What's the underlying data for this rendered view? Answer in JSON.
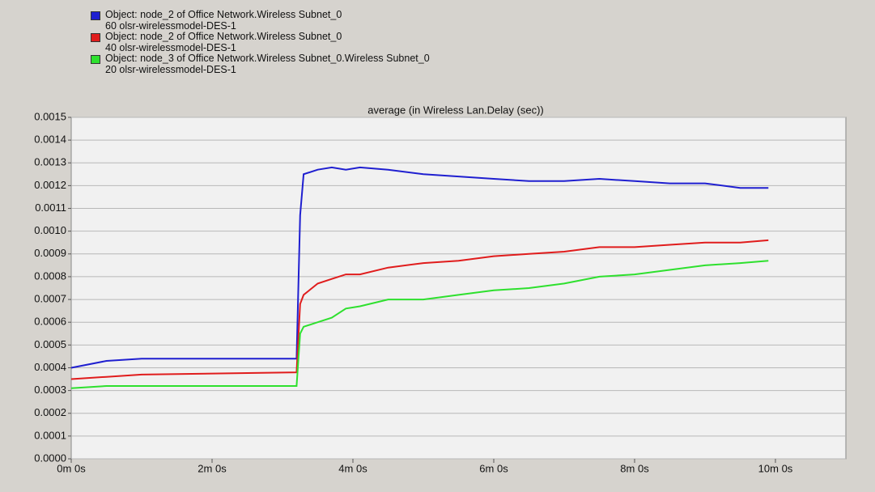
{
  "chart_data": {
    "type": "line",
    "subtitle": "average (in Wireless Lan.Delay (sec))",
    "x": [
      0,
      0.5,
      1,
      3.2,
      3.25,
      3.3,
      3.5,
      3.7,
      3.9,
      4.1,
      4.5,
      5,
      5.5,
      6,
      6.5,
      7,
      7.5,
      8,
      8.5,
      9,
      9.5,
      9.9
    ],
    "series": [
      {
        "name": "Object: node_2 of Office Network.Wireless Subnet_0\n60 olsr-wirelessmodel-DES-1",
        "color": "#1f1fd0",
        "values": [
          0.0004,
          0.00043,
          0.00044,
          0.00044,
          0.00107,
          0.00125,
          0.00127,
          0.00128,
          0.00127,
          0.00128,
          0.00127,
          0.00125,
          0.00124,
          0.00123,
          0.00122,
          0.00122,
          0.00123,
          0.00122,
          0.00121,
          0.00121,
          0.00119,
          0.00119
        ]
      },
      {
        "name": "Object: node_2 of Office Network.Wireless Subnet_0\n40 olsr-wirelessmodel-DES-1",
        "color": "#e01c1c",
        "values": [
          0.00035,
          0.00036,
          0.00037,
          0.00038,
          0.00068,
          0.00072,
          0.00077,
          0.00079,
          0.00081,
          0.00081,
          0.00084,
          0.00086,
          0.00087,
          0.00089,
          0.0009,
          0.00091,
          0.00093,
          0.00093,
          0.00094,
          0.00095,
          0.00095,
          0.00096
        ]
      },
      {
        "name": "Object: node_3 of Office Network.Wireless Subnet_0.Wireless Subnet_0\n20 olsr-wirelessmodel-DES-1",
        "color": "#2ee02e",
        "values": [
          0.00031,
          0.00032,
          0.00032,
          0.00032,
          0.00055,
          0.00058,
          0.0006,
          0.00062,
          0.00066,
          0.00067,
          0.0007,
          0.0007,
          0.00072,
          0.00074,
          0.00075,
          0.00077,
          0.0008,
          0.00081,
          0.00083,
          0.00085,
          0.00086,
          0.00087
        ]
      }
    ],
    "xlim": [
      0,
      11
    ],
    "xticks": [
      {
        "value": 0,
        "label": "0m 0s"
      },
      {
        "value": 2,
        "label": "2m 0s"
      },
      {
        "value": 4,
        "label": "4m 0s"
      },
      {
        "value": 6,
        "label": "6m 0s"
      },
      {
        "value": 8,
        "label": "8m 0s"
      },
      {
        "value": 10,
        "label": "10m 0s"
      }
    ],
    "ylim": [
      0,
      0.0015
    ],
    "yticks": [
      {
        "value": 0,
        "label": "0.0000"
      },
      {
        "value": 0.0001,
        "label": "0.0001"
      },
      {
        "value": 0.0002,
        "label": "0.0002"
      },
      {
        "value": 0.0003,
        "label": "0.0003"
      },
      {
        "value": 0.0004,
        "label": "0.0004"
      },
      {
        "value": 0.0005,
        "label": "0.0005"
      },
      {
        "value": 0.0006,
        "label": "0.0006"
      },
      {
        "value": 0.0007,
        "label": "0.0007"
      },
      {
        "value": 0.0008,
        "label": "0.0008"
      },
      {
        "value": 0.0009,
        "label": "0.0009"
      },
      {
        "value": 0.001,
        "label": "0.0010"
      },
      {
        "value": 0.0011,
        "label": "0.0011"
      },
      {
        "value": 0.0012,
        "label": "0.0012"
      },
      {
        "value": 0.0013,
        "label": "0.0013"
      },
      {
        "value": 0.0014,
        "label": "0.0014"
      },
      {
        "value": 0.0015,
        "label": "0.0015"
      }
    ],
    "grid": true
  }
}
